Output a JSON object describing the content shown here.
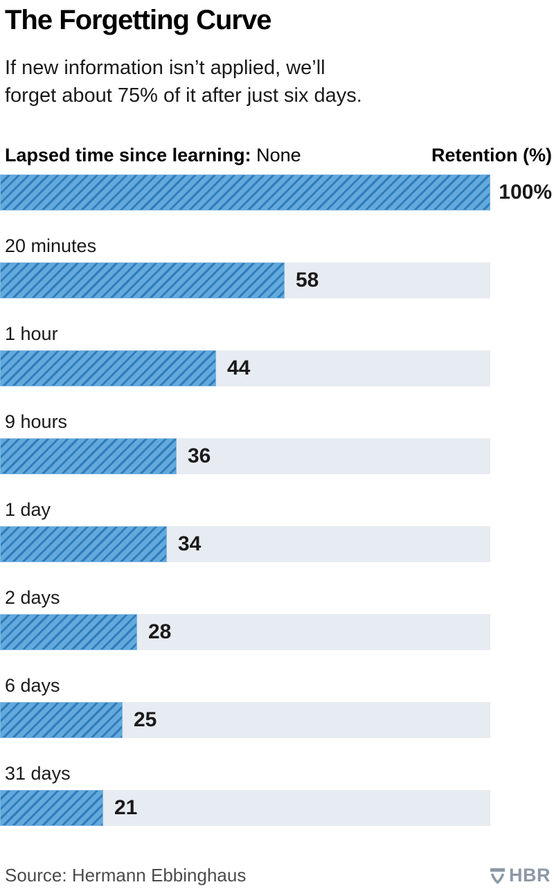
{
  "header": {
    "title": "The Forgetting Curve",
    "subtitle_lines": [
      "If new information isn’t applied, we’ll",
      "forget about 75% of it after just six days."
    ]
  },
  "chart_header": {
    "left_label": "Lapsed time since learning:",
    "first_category": "None",
    "right_label": "Retention (%)"
  },
  "chart_data": {
    "type": "bar",
    "orientation": "horizontal",
    "title": "The Forgetting Curve",
    "xlabel": "Retention (%)",
    "ylabel": "Lapsed time since learning",
    "xlim": [
      0,
      100
    ],
    "grid": false,
    "legend": false,
    "categories": [
      "None",
      "20 minutes",
      "1 hour",
      "9 hours",
      "1 day",
      "2 days",
      "6 days",
      "31 days"
    ],
    "values": [
      100,
      58,
      44,
      36,
      34,
      28,
      25,
      21
    ],
    "value_labels": [
      "100%",
      "58",
      "44",
      "36",
      "34",
      "28",
      "25",
      "21"
    ],
    "colors": {
      "bar_base": "#63a9db",
      "bar_stripe": "#2e7cbd",
      "bar_edge": "#7db6e2",
      "track": "#e7ebf2",
      "value_text": "#1a1a1a"
    }
  },
  "footer": {
    "source": "Source: Hermann Ebbinghaus",
    "logo_text": "HBR",
    "logo_color": "#8c99a5"
  }
}
